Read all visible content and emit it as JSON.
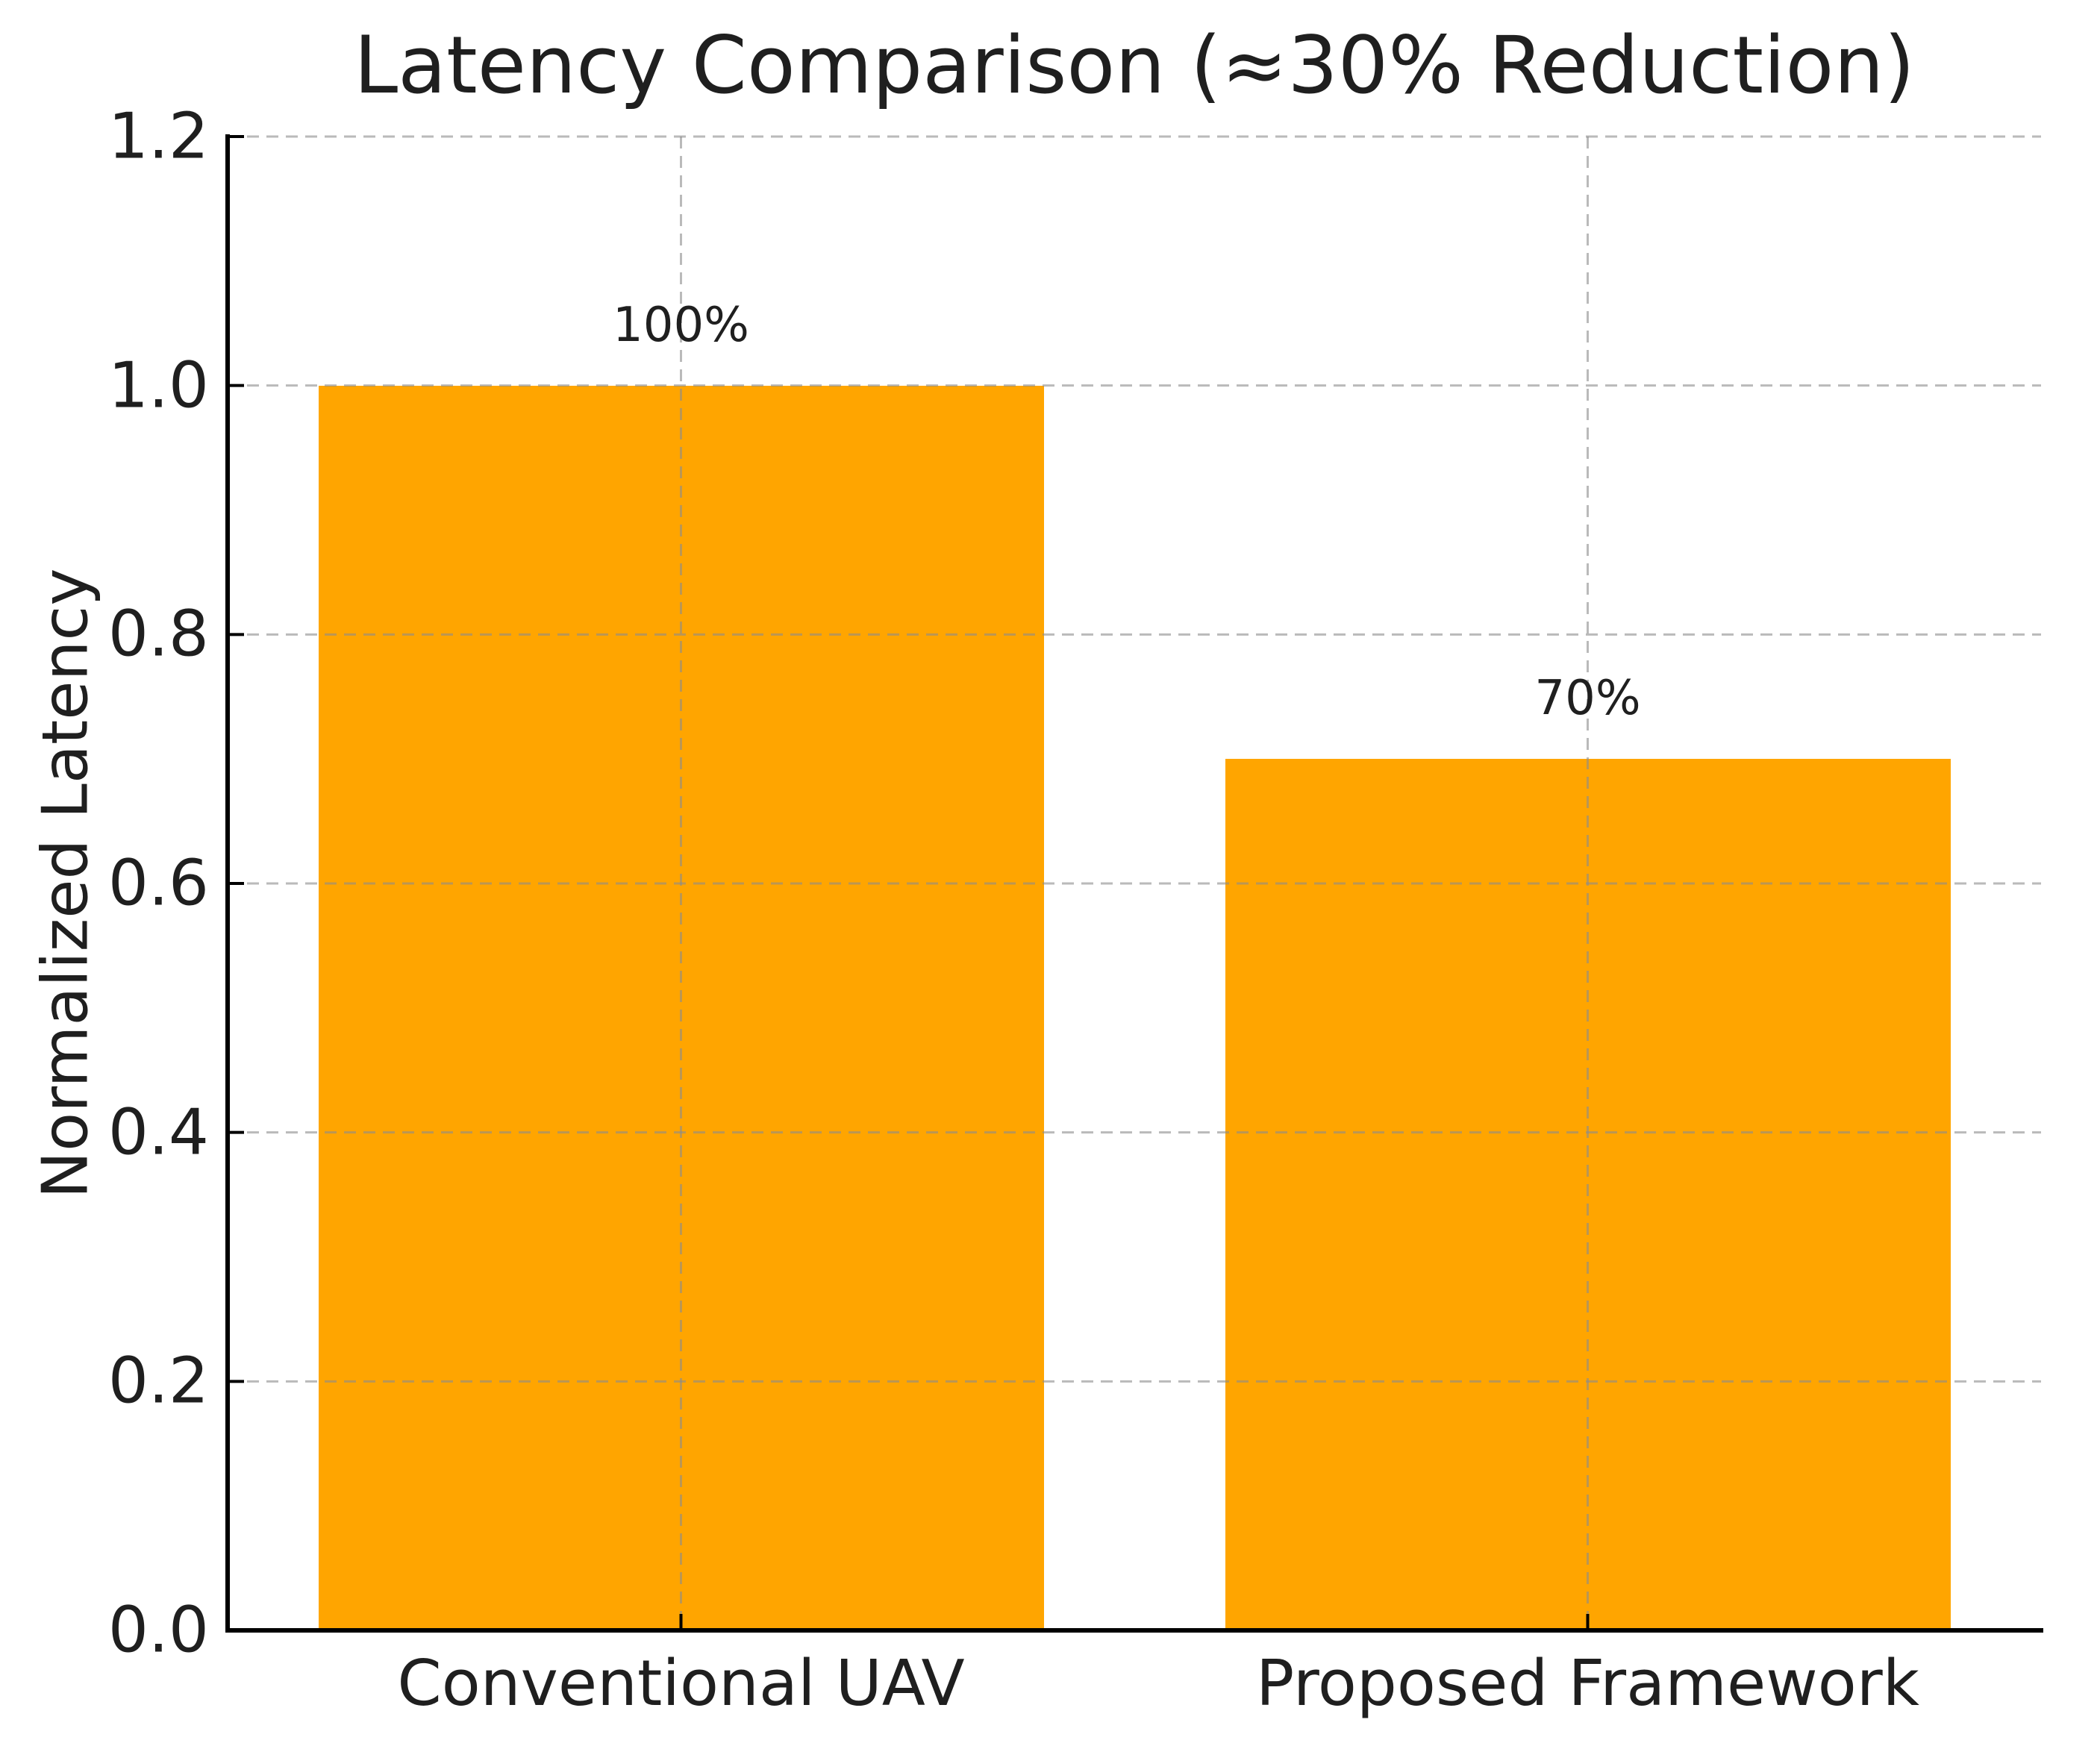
{
  "chart_data": {
    "type": "bar",
    "title": "Latency Comparison (≈30% Reduction)",
    "ylabel": "Normalized Latency",
    "xlabel": "",
    "categories": [
      "Conventional UAV",
      "Proposed Framework"
    ],
    "values": [
      1.0,
      0.7
    ],
    "bar_value_labels": [
      "100%",
      "70%"
    ],
    "ylim": [
      0.0,
      1.2
    ],
    "yticks": [
      0.0,
      0.2,
      0.4,
      0.6,
      0.8,
      1.0,
      1.2
    ],
    "ytick_labels": [
      "0.0",
      "0.2",
      "0.4",
      "0.6",
      "0.8",
      "1.0",
      "1.2"
    ],
    "bar_color": "#FFA500",
    "grid_color": "rgba(140,140,140,0.6)",
    "spine_color": "#000000",
    "text_color": "#1f1f1f",
    "bar_width_fraction": 0.8,
    "legend": "none",
    "grid_style": "dashed; horizontal lines at y-ticks and vertical lines at bar centers, drawn above bars"
  }
}
